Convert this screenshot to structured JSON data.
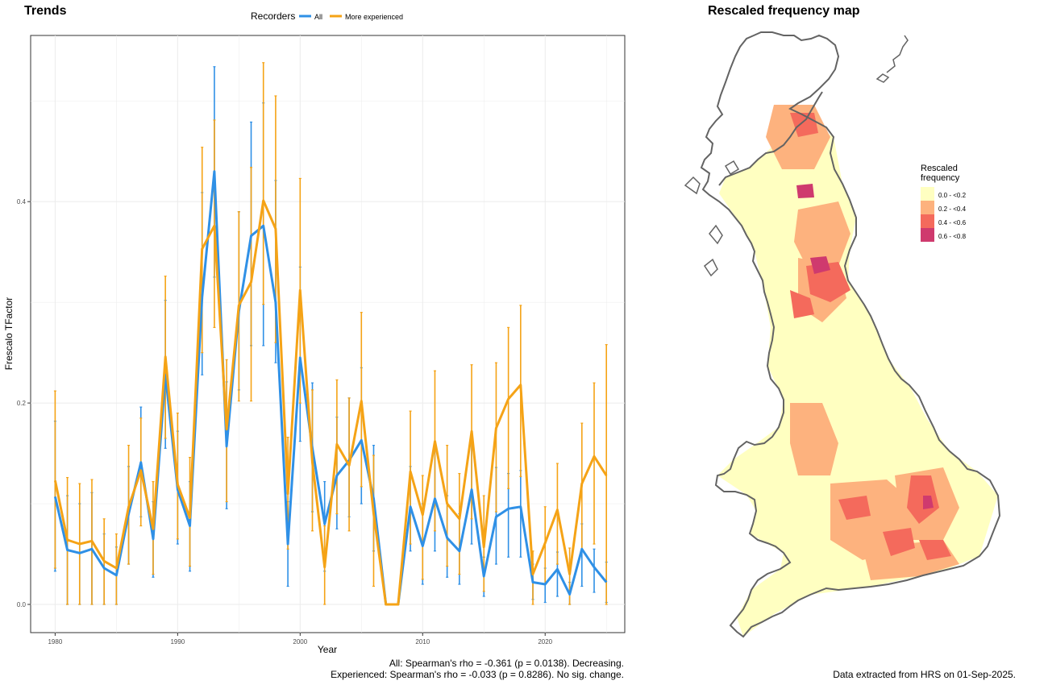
{
  "colors": {
    "all": "#2f90e6",
    "experienced": "#f5a316",
    "map_bins": [
      "#ffffc1",
      "#fdb27e",
      "#f46a5c",
      "#cf3a6e"
    ],
    "coast": "#636363",
    "grid": "#ebebeb"
  },
  "left_panel": {
    "title": "Trends",
    "legend_title": "Recorders",
    "stats_all": "All: Spearman's rho = -0.361 (p = 0.0138). Decreasing.",
    "stats_experienced": "Experienced: Spearman's rho = -0.033 (p = 0.8286). No sig. change."
  },
  "right_panel": {
    "title": "Rescaled frequency map",
    "legend_title": [
      "Rescaled",
      "frequency"
    ],
    "legend_bins": [
      "0.0 - <0.2",
      "0.2 - <0.4",
      "0.4 - <0.6",
      "0.6 - <0.8"
    ],
    "note": "Data extracted from HRS on 01-Sep-2025."
  },
  "chart_data": [
    {
      "type": "line",
      "title": "Trends",
      "xlabel": "Year",
      "ylabel": "Frescalo TFactor",
      "xlim": [
        1978,
        2026.5
      ],
      "ylim": [
        -0.028,
        0.565
      ],
      "xticks": [
        1980,
        1990,
        2000,
        2010,
        2020
      ],
      "yticks": [
        0.0,
        0.2,
        0.4
      ],
      "ytick_labels": [
        "0.0",
        "0.2",
        "0.4"
      ],
      "grid": true,
      "legend_position": "top",
      "x": [
        1980,
        1981,
        1982,
        1983,
        1984,
        1985,
        1986,
        1987,
        1988,
        1989,
        1990,
        1991,
        1992,
        1993,
        1994,
        1995,
        1996,
        1997,
        1998,
        1999,
        2000,
        2001,
        2002,
        2003,
        2004,
        2005,
        2006,
        2007,
        2008,
        2009,
        2010,
        2011,
        2012,
        2013,
        2014,
        2015,
        2016,
        2017,
        2018,
        2019,
        2020,
        2021,
        2022,
        2023,
        2024,
        2025
      ],
      "series": [
        {
          "name": "All",
          "values": [
            0.107,
            0.054,
            0.051,
            0.055,
            0.036,
            0.029,
            0.09,
            0.141,
            0.065,
            0.228,
            0.114,
            0.078,
            0.305,
            0.43,
            0.157,
            0.291,
            0.366,
            0.376,
            0.3,
            0.06,
            0.245,
            0.155,
            0.08,
            0.128,
            0.143,
            0.163,
            0.105,
            0.0,
            0.0,
            0.097,
            0.058,
            0.105,
            0.066,
            0.053,
            0.114,
            0.028,
            0.087,
            0.095,
            0.097,
            0.022,
            0.02,
            0.035,
            0.01,
            0.055,
            0.037,
            0.022
          ],
          "err_low": [
            0.033,
            0.0,
            0.0,
            0.0,
            0.0,
            0.0,
            0.04,
            0.087,
            0.027,
            0.155,
            0.06,
            0.033,
            0.228,
            0.325,
            0.095,
            0.213,
            0.257,
            0.257,
            0.24,
            0.018,
            0.162,
            0.092,
            0.033,
            0.075,
            0.087,
            0.1,
            0.053,
            0.0,
            0.0,
            0.053,
            0.02,
            0.053,
            0.027,
            0.02,
            0.06,
            0.008,
            0.04,
            0.047,
            0.047,
            0.005,
            0.002,
            0.008,
            0.0,
            0.018,
            0.012,
            0.002
          ],
          "err_high": [
            0.182,
            0.108,
            0.1,
            0.111,
            0.07,
            0.057,
            0.137,
            0.196,
            0.102,
            0.302,
            0.172,
            0.122,
            0.409,
            0.534,
            0.221,
            0.39,
            0.479,
            0.498,
            0.421,
            0.102,
            0.335,
            0.22,
            0.122,
            0.186,
            0.205,
            0.235,
            0.158,
            0.0,
            0.0,
            0.137,
            0.1,
            0.157,
            0.108,
            0.09,
            0.166,
            0.047,
            0.136,
            0.13,
            0.133,
            0.04,
            0.036,
            0.052,
            0.022,
            0.08,
            0.055,
            0.042
          ]
        },
        {
          "name": "More experienced",
          "values": [
            0.123,
            0.064,
            0.06,
            0.063,
            0.043,
            0.036,
            0.097,
            0.133,
            0.075,
            0.246,
            0.119,
            0.086,
            0.353,
            0.376,
            0.174,
            0.297,
            0.32,
            0.401,
            0.373,
            0.11,
            0.312,
            0.141,
            0.037,
            0.159,
            0.138,
            0.202,
            0.09,
            0.0,
            0.0,
            0.132,
            0.089,
            0.162,
            0.1,
            0.085,
            0.172,
            0.057,
            0.175,
            0.204,
            0.218,
            0.03,
            0.061,
            0.094,
            0.03,
            0.12,
            0.147,
            0.128
          ],
          "err_low": [
            0.036,
            0.0,
            0.0,
            0.0,
            0.0,
            0.0,
            0.04,
            0.078,
            0.03,
            0.165,
            0.065,
            0.038,
            0.25,
            0.275,
            0.102,
            0.202,
            0.202,
            0.298,
            0.26,
            0.055,
            0.2,
            0.073,
            0.0,
            0.09,
            0.073,
            0.117,
            0.018,
            0.0,
            0.0,
            0.06,
            0.025,
            0.073,
            0.038,
            0.03,
            0.085,
            0.013,
            0.092,
            0.115,
            0.127,
            0.0,
            0.02,
            0.04,
            0.0,
            0.053,
            0.06,
            0.0
          ],
          "err_high": [
            0.212,
            0.126,
            0.12,
            0.124,
            0.085,
            0.07,
            0.158,
            0.185,
            0.122,
            0.326,
            0.19,
            0.146,
            0.454,
            0.481,
            0.243,
            0.39,
            0.434,
            0.538,
            0.505,
            0.166,
            0.423,
            0.213,
            0.078,
            0.223,
            0.205,
            0.29,
            0.148,
            0.0,
            0.0,
            0.192,
            0.128,
            0.232,
            0.158,
            0.13,
            0.238,
            0.108,
            0.24,
            0.275,
            0.297,
            0.053,
            0.097,
            0.14,
            0.056,
            0.18,
            0.22,
            0.258
          ]
        }
      ]
    },
    {
      "type": "heatmap",
      "title": "Rescaled frequency map",
      "legend_title": "Rescaled frequency",
      "legend_position": "top-right",
      "bins": [
        "0.0 - <0.2",
        "0.2 - <0.4",
        "0.4 - <0.6",
        "0.6 - <0.8"
      ]
    }
  ]
}
